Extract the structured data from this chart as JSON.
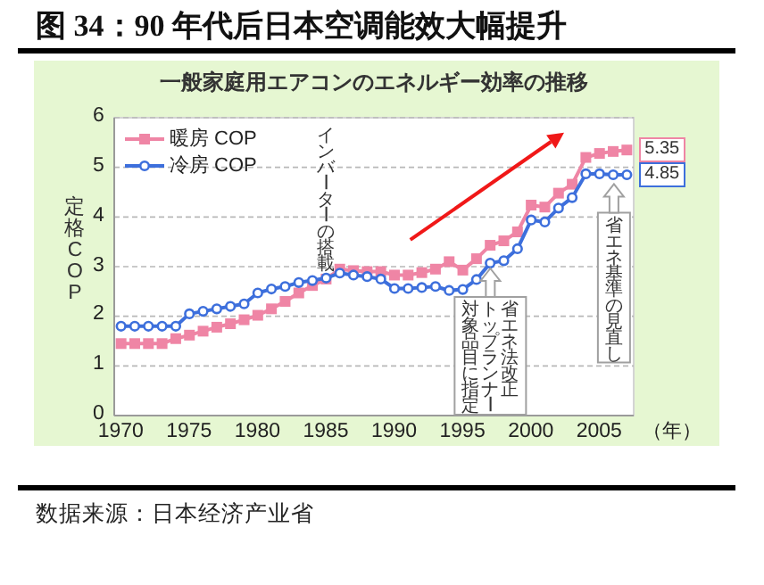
{
  "chart_data": {
    "type": "line",
    "title": "图 34：90 年代后日本空调能效大幅提升",
    "subtitle": "一般家庭用エアコンのエネルギー効率の推移",
    "xlabel": "（年）",
    "ylabel": "定格COP",
    "x": [
      1970,
      1971,
      1972,
      1973,
      1974,
      1975,
      1976,
      1977,
      1978,
      1979,
      1980,
      1981,
      1982,
      1983,
      1984,
      1985,
      1986,
      1987,
      1988,
      1989,
      1990,
      1991,
      1992,
      1993,
      1994,
      1995,
      1996,
      1997,
      1998,
      1999,
      2000,
      2001,
      2002,
      2003,
      2004,
      2005,
      2006,
      2007
    ],
    "series": [
      {
        "name": "暖房 COP",
        "color": "#ef85a5",
        "marker": "square",
        "values": [
          1.45,
          1.45,
          1.45,
          1.45,
          1.55,
          1.62,
          1.7,
          1.78,
          1.85,
          1.93,
          2.02,
          2.15,
          2.3,
          2.47,
          2.62,
          2.75,
          2.95,
          2.92,
          2.9,
          2.9,
          2.83,
          2.83,
          2.88,
          2.95,
          3.1,
          2.93,
          3.16,
          3.43,
          3.52,
          3.7,
          4.24,
          4.2,
          4.48,
          4.66,
          5.2,
          5.28,
          5.32,
          5.35
        ],
        "value_labels": [
          null,
          null,
          null,
          null,
          null,
          null,
          null,
          null,
          null,
          null,
          null,
          null,
          null,
          null,
          null,
          null,
          null,
          null,
          null,
          null,
          null,
          null,
          null,
          null,
          null,
          null,
          null,
          null,
          null,
          null,
          null,
          null,
          null,
          null,
          null,
          null,
          null,
          "5.35"
        ]
      },
      {
        "name": "冷房 COP",
        "color": "#3d6fdc",
        "marker": "circle",
        "values": [
          1.8,
          1.8,
          1.8,
          1.8,
          1.8,
          2.05,
          2.1,
          2.15,
          2.2,
          2.25,
          2.47,
          2.55,
          2.6,
          2.68,
          2.72,
          2.77,
          2.87,
          2.83,
          2.8,
          2.75,
          2.56,
          2.56,
          2.58,
          2.6,
          2.52,
          2.54,
          2.74,
          3.07,
          3.12,
          3.36,
          3.94,
          3.9,
          4.18,
          4.39,
          4.87,
          4.87,
          4.85,
          4.85
        ],
        "value_labels": [
          null,
          null,
          null,
          null,
          null,
          null,
          null,
          null,
          null,
          null,
          null,
          null,
          null,
          null,
          null,
          null,
          null,
          null,
          null,
          null,
          null,
          null,
          null,
          null,
          null,
          null,
          null,
          null,
          null,
          null,
          null,
          null,
          null,
          null,
          null,
          null,
          null,
          "4.85"
        ]
      }
    ],
    "xlim": [
      1969.5,
      2007.5
    ],
    "xticks": [
      1970,
      1975,
      1980,
      1985,
      1990,
      1995,
      2000,
      2005
    ],
    "ylim": [
      0,
      6
    ],
    "yticks": [
      0,
      1,
      2,
      3,
      4,
      5,
      6
    ],
    "grid": "y",
    "legend": "top left",
    "annotations": [
      "インバーターの搭載",
      "省エネ法改正",
      "トップランナー",
      "対象品目に指定",
      "省エネ基準の見直し",
      "数据来源：日本经济产业省"
    ]
  }
}
